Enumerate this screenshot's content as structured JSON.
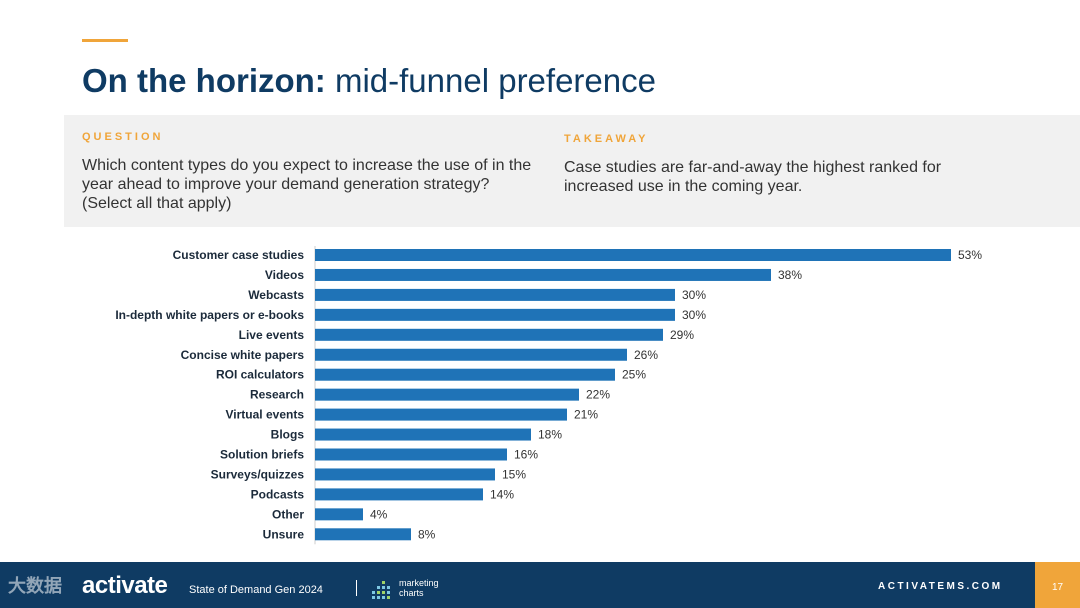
{
  "title": {
    "bold": "On the horizon:",
    "light": "mid-funnel preference"
  },
  "question": {
    "label": "QUESTION",
    "text": "Which content types do you expect to increase the use of in the year ahead to improve your demand generation strategy? (Select all that apply)"
  },
  "takeaway": {
    "label": "TAKEAWAY",
    "text": "Case studies are far-and-away the highest ranked for increased use in the coming year."
  },
  "chart_data": {
    "type": "bar",
    "orientation": "horizontal",
    "categories": [
      "Customer case studies",
      "Videos",
      "Webcasts",
      "In-depth white papers or e-books",
      "Live events",
      "Concise white papers",
      "ROI calculators",
      "Research",
      "Virtual events",
      "Blogs",
      "Solution briefs",
      "Surveys/quizzes",
      "Podcasts",
      "Other",
      "Unsure"
    ],
    "values": [
      53,
      38,
      30,
      30,
      29,
      26,
      25,
      22,
      21,
      18,
      16,
      15,
      14,
      4,
      8
    ],
    "labels": [
      "53%",
      "38%",
      "30%",
      "30%",
      "29%",
      "26%",
      "25%",
      "22%",
      "21%",
      "18%",
      "16%",
      "15%",
      "14%",
      "4%",
      "8%"
    ],
    "bar_color": "#1f73b7",
    "xlim": [
      0,
      55
    ],
    "grid": false,
    "legend": "none"
  },
  "footer": {
    "logo": "activate",
    "report": "State of Demand Gen 2024",
    "partner_line1": "marketing",
    "partner_line2": "charts",
    "url": "ACTIVATEMS.COM",
    "page": "17"
  },
  "watermark": "大数据"
}
